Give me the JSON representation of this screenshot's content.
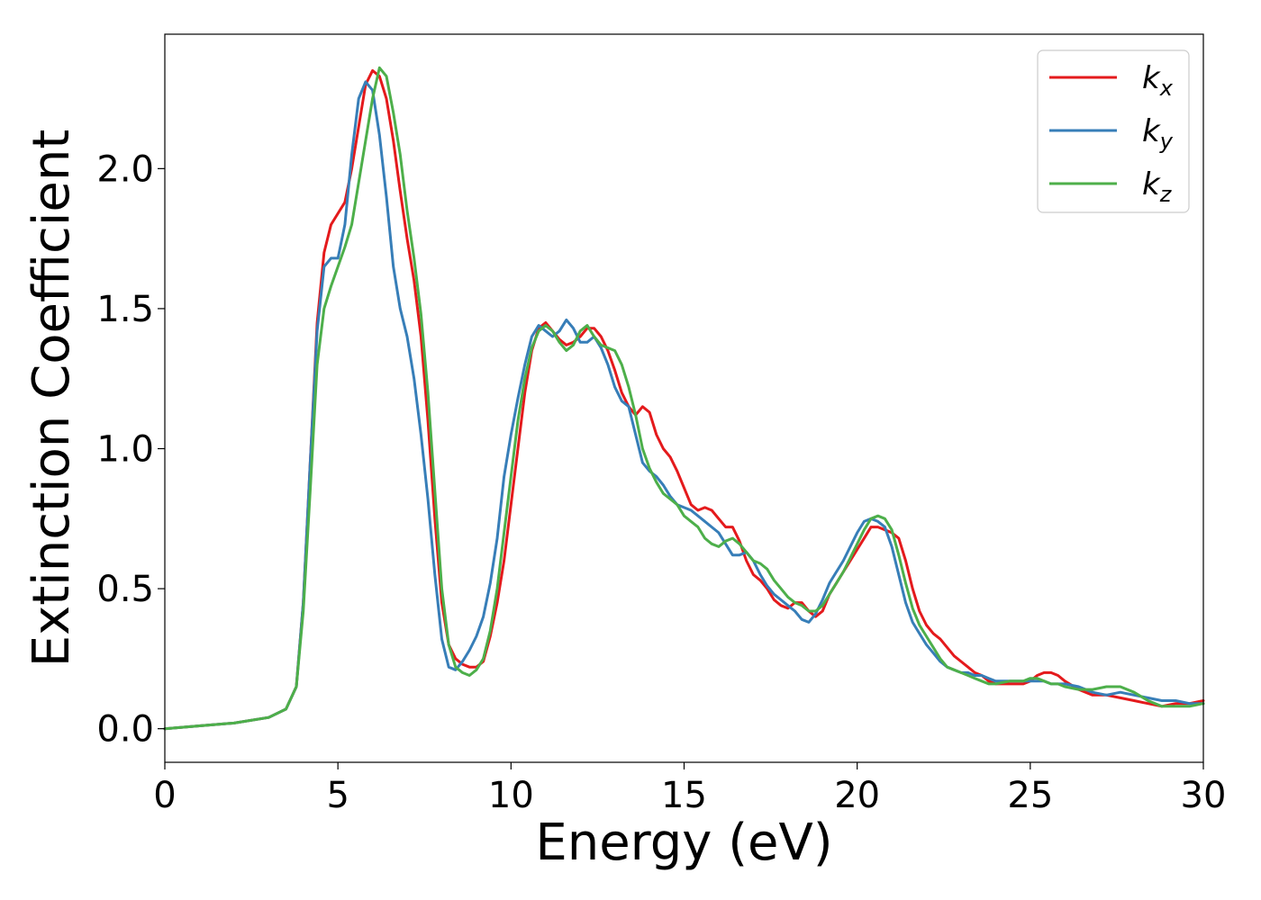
{
  "chart_data": {
    "type": "line",
    "title": "",
    "xlabel": "Energy (eV)",
    "ylabel": "Extinction Coefficient",
    "xlim": [
      0,
      30
    ],
    "ylim": [
      -0.12,
      2.48
    ],
    "xticks": [
      0,
      5,
      10,
      15,
      20,
      25,
      30
    ],
    "xtick_labels": [
      "0",
      "5",
      "10",
      "15",
      "20",
      "25",
      "30"
    ],
    "yticks": [
      0.0,
      0.5,
      1.0,
      1.5,
      2.0
    ],
    "ytick_labels": [
      "0.0",
      "0.5",
      "1.0",
      "1.5",
      "2.0"
    ],
    "grid": false,
    "legend_position": "top-right",
    "series": [
      {
        "name": "k",
        "subscript": "x",
        "color": "#e41a1c",
        "x": [
          0,
          1,
          2,
          3,
          3.5,
          3.8,
          4.0,
          4.2,
          4.4,
          4.6,
          4.8,
          5.0,
          5.2,
          5.4,
          5.6,
          5.8,
          6.0,
          6.2,
          6.4,
          6.6,
          6.8,
          7.0,
          7.2,
          7.4,
          7.6,
          7.8,
          8.0,
          8.2,
          8.4,
          8.6,
          8.8,
          9.0,
          9.2,
          9.4,
          9.6,
          9.8,
          10.0,
          10.2,
          10.4,
          10.6,
          10.8,
          11.0,
          11.2,
          11.4,
          11.6,
          11.8,
          12.0,
          12.2,
          12.4,
          12.6,
          12.8,
          13.0,
          13.2,
          13.4,
          13.6,
          13.8,
          14.0,
          14.2,
          14.4,
          14.6,
          14.8,
          15.0,
          15.2,
          15.4,
          15.6,
          15.8,
          16.0,
          16.2,
          16.4,
          16.6,
          16.8,
          17.0,
          17.2,
          17.4,
          17.6,
          17.8,
          18.0,
          18.2,
          18.4,
          18.6,
          18.8,
          19.0,
          19.2,
          19.4,
          19.6,
          19.8,
          20.0,
          20.2,
          20.4,
          20.6,
          20.8,
          21.0,
          21.2,
          21.4,
          21.6,
          21.8,
          22.0,
          22.2,
          22.4,
          22.6,
          22.8,
          23.0,
          23.2,
          23.4,
          23.6,
          23.8,
          24.0,
          24.4,
          24.8,
          25.0,
          25.2,
          25.4,
          25.6,
          25.8,
          26.0,
          26.4,
          26.8,
          27.2,
          27.6,
          28.0,
          28.4,
          28.8,
          29.2,
          29.6,
          30.0
        ],
        "values": [
          0.0,
          0.01,
          0.02,
          0.04,
          0.07,
          0.15,
          0.45,
          0.95,
          1.45,
          1.7,
          1.8,
          1.84,
          1.88,
          2.0,
          2.15,
          2.3,
          2.35,
          2.33,
          2.25,
          2.1,
          1.92,
          1.75,
          1.6,
          1.4,
          1.1,
          0.75,
          0.45,
          0.3,
          0.25,
          0.23,
          0.22,
          0.22,
          0.24,
          0.33,
          0.45,
          0.6,
          0.8,
          1.0,
          1.2,
          1.35,
          1.43,
          1.45,
          1.42,
          1.39,
          1.37,
          1.38,
          1.4,
          1.43,
          1.43,
          1.4,
          1.35,
          1.28,
          1.2,
          1.15,
          1.12,
          1.15,
          1.13,
          1.05,
          1.0,
          0.97,
          0.92,
          0.86,
          0.8,
          0.78,
          0.79,
          0.78,
          0.75,
          0.72,
          0.72,
          0.67,
          0.6,
          0.55,
          0.53,
          0.5,
          0.46,
          0.44,
          0.43,
          0.45,
          0.45,
          0.42,
          0.4,
          0.42,
          0.48,
          0.52,
          0.56,
          0.6,
          0.64,
          0.68,
          0.72,
          0.72,
          0.71,
          0.7,
          0.68,
          0.6,
          0.5,
          0.42,
          0.37,
          0.34,
          0.32,
          0.29,
          0.26,
          0.24,
          0.22,
          0.2,
          0.19,
          0.17,
          0.16,
          0.16,
          0.16,
          0.17,
          0.19,
          0.2,
          0.2,
          0.19,
          0.17,
          0.14,
          0.12,
          0.12,
          0.11,
          0.1,
          0.09,
          0.08,
          0.09,
          0.09,
          0.1
        ]
      },
      {
        "name": "k",
        "subscript": "y",
        "color": "#377eb8",
        "x": [
          0,
          1,
          2,
          3,
          3.5,
          3.8,
          4.0,
          4.2,
          4.4,
          4.6,
          4.8,
          5.0,
          5.2,
          5.4,
          5.6,
          5.8,
          6.0,
          6.2,
          6.4,
          6.6,
          6.8,
          7.0,
          7.2,
          7.4,
          7.6,
          7.8,
          8.0,
          8.2,
          8.4,
          8.6,
          8.8,
          9.0,
          9.2,
          9.4,
          9.6,
          9.8,
          10.0,
          10.2,
          10.4,
          10.6,
          10.8,
          11.0,
          11.2,
          11.4,
          11.6,
          11.8,
          12.0,
          12.2,
          12.4,
          12.6,
          12.8,
          13.0,
          13.2,
          13.4,
          13.6,
          13.8,
          14.0,
          14.2,
          14.4,
          14.6,
          14.8,
          15.0,
          15.2,
          15.4,
          15.6,
          15.8,
          16.0,
          16.2,
          16.4,
          16.6,
          16.8,
          17.0,
          17.2,
          17.4,
          17.6,
          17.8,
          18.0,
          18.2,
          18.4,
          18.6,
          18.8,
          19.0,
          19.2,
          19.4,
          19.6,
          19.8,
          20.0,
          20.2,
          20.4,
          20.6,
          20.8,
          21.0,
          21.2,
          21.4,
          21.6,
          21.8,
          22.0,
          22.2,
          22.4,
          22.6,
          22.8,
          23.0,
          23.2,
          23.4,
          23.6,
          23.8,
          24.0,
          24.4,
          24.8,
          25.0,
          25.2,
          25.4,
          25.6,
          25.8,
          26.0,
          26.4,
          26.8,
          27.2,
          27.6,
          28.0,
          28.4,
          28.8,
          29.2,
          29.6,
          30.0
        ],
        "values": [
          0.0,
          0.01,
          0.02,
          0.04,
          0.07,
          0.15,
          0.45,
          0.95,
          1.42,
          1.65,
          1.68,
          1.68,
          1.8,
          2.05,
          2.25,
          2.31,
          2.28,
          2.12,
          1.9,
          1.65,
          1.5,
          1.4,
          1.25,
          1.05,
          0.82,
          0.55,
          0.32,
          0.22,
          0.21,
          0.24,
          0.28,
          0.33,
          0.4,
          0.52,
          0.68,
          0.9,
          1.05,
          1.18,
          1.3,
          1.4,
          1.44,
          1.42,
          1.4,
          1.42,
          1.46,
          1.43,
          1.38,
          1.38,
          1.4,
          1.36,
          1.3,
          1.22,
          1.17,
          1.15,
          1.05,
          0.95,
          0.92,
          0.9,
          0.87,
          0.83,
          0.8,
          0.79,
          0.78,
          0.76,
          0.74,
          0.72,
          0.7,
          0.66,
          0.62,
          0.62,
          0.63,
          0.6,
          0.55,
          0.51,
          0.48,
          0.46,
          0.44,
          0.42,
          0.39,
          0.38,
          0.41,
          0.46,
          0.52,
          0.56,
          0.6,
          0.65,
          0.7,
          0.74,
          0.75,
          0.74,
          0.72,
          0.65,
          0.55,
          0.45,
          0.38,
          0.34,
          0.3,
          0.27,
          0.24,
          0.22,
          0.21,
          0.2,
          0.2,
          0.19,
          0.19,
          0.18,
          0.17,
          0.17,
          0.17,
          0.17,
          0.17,
          0.17,
          0.16,
          0.16,
          0.16,
          0.15,
          0.13,
          0.12,
          0.13,
          0.12,
          0.11,
          0.1,
          0.1,
          0.09,
          0.09
        ]
      },
      {
        "name": "k",
        "subscript": "z",
        "color": "#4daf4a",
        "x": [
          0,
          1,
          2,
          3,
          3.5,
          3.8,
          4.0,
          4.2,
          4.4,
          4.6,
          4.8,
          5.0,
          5.2,
          5.4,
          5.6,
          5.8,
          6.0,
          6.2,
          6.4,
          6.6,
          6.8,
          7.0,
          7.2,
          7.4,
          7.6,
          7.8,
          8.0,
          8.2,
          8.4,
          8.6,
          8.8,
          9.0,
          9.2,
          9.4,
          9.6,
          9.8,
          10.0,
          10.2,
          10.4,
          10.6,
          10.8,
          11.0,
          11.2,
          11.4,
          11.6,
          11.8,
          12.0,
          12.2,
          12.4,
          12.6,
          12.8,
          13.0,
          13.2,
          13.4,
          13.6,
          13.8,
          14.0,
          14.2,
          14.4,
          14.6,
          14.8,
          15.0,
          15.2,
          15.4,
          15.6,
          15.8,
          16.0,
          16.2,
          16.4,
          16.6,
          16.8,
          17.0,
          17.2,
          17.4,
          17.6,
          17.8,
          18.0,
          18.2,
          18.4,
          18.6,
          18.8,
          19.0,
          19.2,
          19.4,
          19.6,
          19.8,
          20.0,
          20.2,
          20.4,
          20.6,
          20.8,
          21.0,
          21.2,
          21.4,
          21.6,
          21.8,
          22.0,
          22.2,
          22.4,
          22.6,
          22.8,
          23.0,
          23.2,
          23.4,
          23.6,
          23.8,
          24.0,
          24.4,
          24.8,
          25.0,
          25.2,
          25.4,
          25.6,
          25.8,
          26.0,
          26.4,
          26.8,
          27.2,
          27.6,
          28.0,
          28.4,
          28.8,
          29.2,
          29.6,
          30.0
        ],
        "values": [
          0.0,
          0.01,
          0.02,
          0.04,
          0.07,
          0.15,
          0.42,
          0.85,
          1.3,
          1.5,
          1.58,
          1.65,
          1.72,
          1.8,
          1.95,
          2.1,
          2.25,
          2.36,
          2.33,
          2.2,
          2.05,
          1.85,
          1.68,
          1.48,
          1.2,
          0.85,
          0.5,
          0.3,
          0.22,
          0.2,
          0.19,
          0.21,
          0.25,
          0.35,
          0.5,
          0.7,
          0.9,
          1.1,
          1.25,
          1.36,
          1.42,
          1.44,
          1.42,
          1.38,
          1.35,
          1.37,
          1.42,
          1.44,
          1.4,
          1.37,
          1.36,
          1.35,
          1.3,
          1.22,
          1.12,
          1.0,
          0.93,
          0.88,
          0.84,
          0.82,
          0.8,
          0.76,
          0.74,
          0.72,
          0.68,
          0.66,
          0.65,
          0.67,
          0.68,
          0.66,
          0.63,
          0.6,
          0.59,
          0.57,
          0.53,
          0.5,
          0.47,
          0.45,
          0.44,
          0.42,
          0.42,
          0.44,
          0.48,
          0.52,
          0.56,
          0.61,
          0.66,
          0.71,
          0.75,
          0.76,
          0.75,
          0.71,
          0.62,
          0.52,
          0.43,
          0.37,
          0.33,
          0.29,
          0.25,
          0.22,
          0.21,
          0.2,
          0.19,
          0.18,
          0.17,
          0.16,
          0.16,
          0.17,
          0.17,
          0.18,
          0.18,
          0.17,
          0.16,
          0.16,
          0.15,
          0.14,
          0.14,
          0.15,
          0.15,
          0.13,
          0.1,
          0.08,
          0.08,
          0.08,
          0.09
        ]
      }
    ]
  }
}
